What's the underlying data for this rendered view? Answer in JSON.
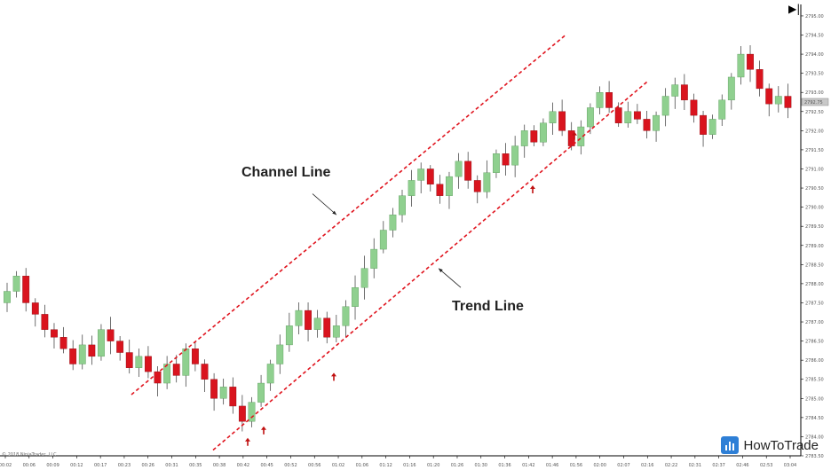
{
  "chart_data": {
    "type": "candlestick",
    "annotations": [
      "Channel Line",
      "Trend Line"
    ],
    "ylim": [
      2783.5,
      2795.3
    ],
    "y_ticks": [
      {
        "v": 2795.0,
        "label": "2795.00"
      },
      {
        "v": 2794.5,
        "label": "2794.50"
      },
      {
        "v": 2794.0,
        "label": "2794.00"
      },
      {
        "v": 2793.5,
        "label": "2793.50"
      },
      {
        "v": 2793.0,
        "label": "2793.00"
      },
      {
        "v": 2792.5,
        "label": "2792.50"
      },
      {
        "v": 2792.0,
        "label": "2792.00"
      },
      {
        "v": 2791.5,
        "label": "2791.50"
      },
      {
        "v": 2791.0,
        "label": "2791.00"
      },
      {
        "v": 2790.5,
        "label": "2790.50"
      },
      {
        "v": 2790.0,
        "label": "2790.00"
      },
      {
        "v": 2789.5,
        "label": "2789.50"
      },
      {
        "v": 2789.0,
        "label": "2789.00"
      },
      {
        "v": 2788.5,
        "label": "2788.50"
      },
      {
        "v": 2788.0,
        "label": "2788.00"
      },
      {
        "v": 2787.5,
        "label": "2787.50"
      },
      {
        "v": 2787.0,
        "label": "2787.00"
      },
      {
        "v": 2786.5,
        "label": "2786.50"
      },
      {
        "v": 2786.0,
        "label": "2786.00"
      },
      {
        "v": 2785.5,
        "label": "2785.50"
      },
      {
        "v": 2785.0,
        "label": "2785.00"
      },
      {
        "v": 2784.5,
        "label": "2784.50"
      },
      {
        "v": 2784.0,
        "label": "2784.00"
      },
      {
        "v": 2783.5,
        "label": "2783.50"
      }
    ],
    "last_price_label": "2792.75",
    "x_labels": [
      "00:02",
      "00:06",
      "00:09",
      "00:12",
      "00:17",
      "00:23",
      "00:26",
      "00:31",
      "00:35",
      "00:38",
      "00:42",
      "00:45",
      "00:52",
      "00:56",
      "01:02",
      "01:06",
      "01:12",
      "01:16",
      "01:20",
      "01:26",
      "01:30",
      "01:36",
      "01:42",
      "01:46",
      "01:56",
      "02:00",
      "02:07",
      "02:16",
      "02:22",
      "02:31",
      "02:37",
      "02:46",
      "02:53",
      "03:04"
    ],
    "close_path": [
      2787.8,
      2788.2,
      2787.5,
      2787.2,
      2786.8,
      2786.6,
      2786.3,
      2785.9,
      2786.4,
      2786.1,
      2786.8,
      2786.5,
      2786.2,
      2785.8,
      2786.1,
      2785.7,
      2785.4,
      2785.9,
      2785.6,
      2786.3,
      2785.9,
      2785.5,
      2785.0,
      2785.3,
      2784.8,
      2784.4,
      2784.9,
      2785.4,
      2785.9,
      2786.4,
      2786.9,
      2787.3,
      2786.8,
      2787.1,
      2786.6,
      2786.9,
      2787.4,
      2787.9,
      2788.4,
      2788.9,
      2789.4,
      2789.8,
      2790.3,
      2790.7,
      2791.0,
      2790.6,
      2790.3,
      2790.8,
      2791.2,
      2790.7,
      2790.4,
      2790.9,
      2791.4,
      2791.1,
      2791.6,
      2792.0,
      2791.7,
      2792.2,
      2792.5,
      2792.0,
      2791.6,
      2792.1,
      2792.6,
      2793.0,
      2792.6,
      2792.2,
      2792.5,
      2792.3,
      2792.0,
      2792.4,
      2792.9,
      2793.2,
      2792.8,
      2792.4,
      2791.9,
      2792.3,
      2792.8,
      2793.4,
      2794.0,
      2793.6,
      2793.1,
      2792.7,
      2792.9,
      2792.6
    ]
  },
  "branding": {
    "logo_text": "HowToTrade",
    "copyright": "© 2018 NinjaTrader, LLC",
    "play_symbol": "▶|"
  },
  "colors": {
    "up": "#8fd08f",
    "down": "#d9141e",
    "channel": "#e0141e",
    "logo": "#2e7fd6"
  }
}
